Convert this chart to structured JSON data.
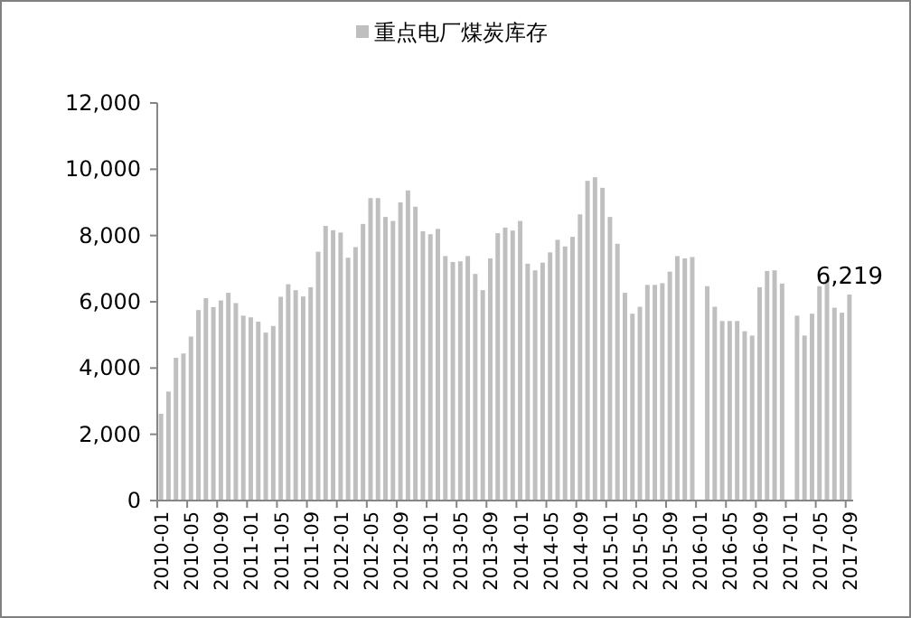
{
  "chart_data": {
    "type": "bar",
    "categories": [
      "2010-01",
      null,
      null,
      null,
      "2010-05",
      null,
      null,
      null,
      "2010-09",
      null,
      null,
      null,
      "2011-01",
      null,
      null,
      null,
      "2011-05",
      null,
      null,
      null,
      "2011-09",
      null,
      null,
      null,
      "2012-01",
      null,
      null,
      null,
      "2012-05",
      null,
      null,
      null,
      "2012-09",
      null,
      null,
      null,
      "2013-01",
      null,
      null,
      null,
      "2013-05",
      null,
      null,
      null,
      "2013-09",
      null,
      null,
      null,
      "2014-01",
      null,
      null,
      null,
      "2014-05",
      null,
      null,
      null,
      "2014-09",
      null,
      null,
      null,
      "2015-01",
      null,
      null,
      null,
      "2015-05",
      null,
      null,
      null,
      "2015-09",
      null,
      null,
      null,
      "2016-01",
      null,
      null,
      null,
      "2016-05",
      null,
      null,
      null,
      "2016-09",
      null,
      null,
      null,
      "2017-01",
      null,
      null,
      null,
      "2017-05",
      null,
      null,
      null,
      "2017-09"
    ],
    "series": [
      {
        "name": "重点电厂煤炭库存",
        "color": "#bfbfbf",
        "values": [
          2620,
          3290,
          4310,
          4440,
          4950,
          5750,
          6110,
          5840,
          6040,
          6270,
          5960,
          5580,
          5530,
          5400,
          5070,
          5270,
          6150,
          6530,
          6350,
          6160,
          6440,
          7510,
          8290,
          8160,
          8090,
          7330,
          7650,
          8350,
          9130,
          9130,
          8560,
          8440,
          9000,
          9360,
          8870,
          8130,
          8040,
          8200,
          7380,
          7200,
          7220,
          7380,
          6840,
          6350,
          7310,
          8070,
          8240,
          8150,
          8440,
          7150,
          6950,
          7180,
          7490,
          7870,
          7670,
          7960,
          8640,
          9650,
          9760,
          9440,
          8560,
          7750,
          6270,
          5640,
          5850,
          6510,
          6510,
          6560,
          6910,
          7380,
          7310,
          7350,
          null,
          6470,
          5850,
          5420,
          5420,
          5420,
          5110,
          4980,
          6440,
          6930,
          6950,
          6550,
          null,
          5580,
          4980,
          5640,
          6470,
          6670,
          5820,
          5670,
          6219
        ],
        "value_labels": [
          null,
          null,
          null,
          null,
          null,
          null,
          null,
          null,
          null,
          null,
          null,
          null,
          null,
          null,
          null,
          null,
          null,
          null,
          null,
          null,
          null,
          null,
          null,
          null,
          null,
          null,
          null,
          null,
          null,
          null,
          null,
          null,
          null,
          null,
          null,
          null,
          null,
          null,
          null,
          null,
          null,
          null,
          null,
          null,
          null,
          null,
          null,
          null,
          null,
          null,
          null,
          null,
          null,
          null,
          null,
          null,
          null,
          null,
          null,
          null,
          null,
          null,
          null,
          null,
          null,
          null,
          null,
          null,
          null,
          null,
          null,
          null,
          null,
          null,
          null,
          null,
          null,
          null,
          null,
          null,
          null,
          null,
          null,
          null,
          null,
          null,
          null,
          null,
          null,
          null,
          null,
          null,
          "6,219"
        ]
      }
    ],
    "ylim": [
      0,
      12000
    ],
    "yticks": [
      {
        "value": 0,
        "label": "0"
      },
      {
        "value": 2000,
        "label": "2,000"
      },
      {
        "value": 4000,
        "label": "4,000"
      },
      {
        "value": 6000,
        "label": "6,000"
      },
      {
        "value": 8000,
        "label": "8,000"
      },
      {
        "value": 10000,
        "label": "10,000"
      },
      {
        "value": 12000,
        "label": "12,000"
      }
    ],
    "grid": false,
    "legend": "top"
  }
}
